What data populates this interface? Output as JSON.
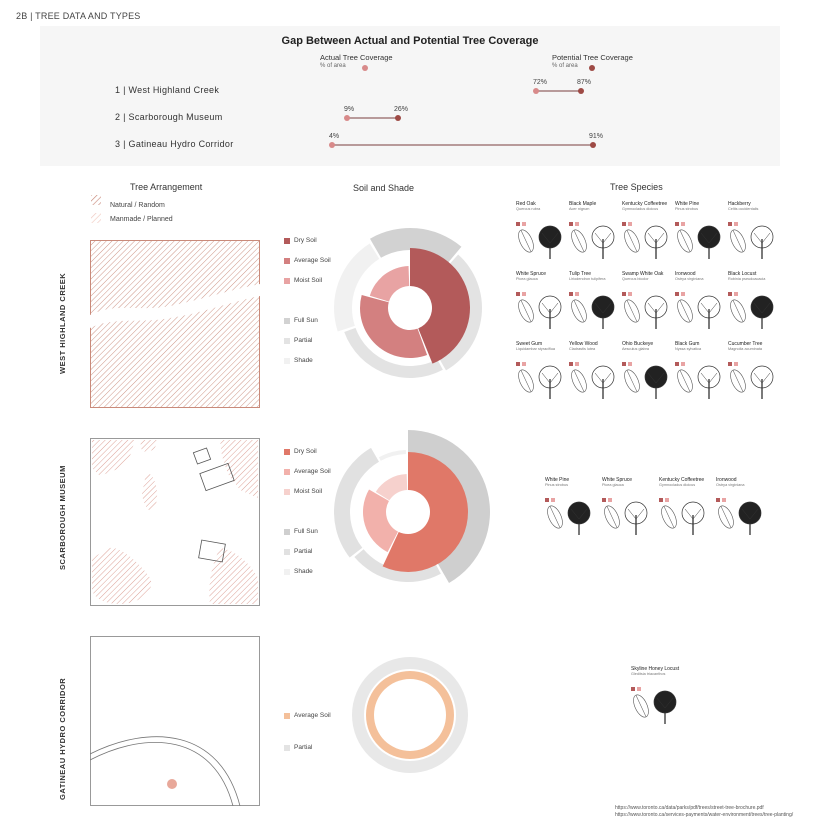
{
  "header": {
    "title": "2B | TREE DATA AND TYPES"
  },
  "gap_chart": {
    "title": "Gap Between Actual and Potential Tree Coverage",
    "legend": {
      "actual_label": "Actual Tree Coverage",
      "actual_sub": "% of area",
      "potential_label": "Potential Tree Coverage",
      "potential_sub": "% of area"
    },
    "colors": {
      "actual": "#d88a8a",
      "potential": "#9e4a45"
    },
    "rows": [
      {
        "label": "1 | West Highland Creek",
        "actual": 72,
        "potential": 87,
        "actual_text": "72%",
        "potential_text": "87%"
      },
      {
        "label": "2 | Scarborough Museum",
        "actual": 9,
        "potential": 26,
        "actual_text": "9%",
        "potential_text": "26%"
      },
      {
        "label": "3 | Gatineau Hydro Corridor",
        "actual": 4,
        "potential": 91,
        "actual_text": "4%",
        "potential_text": "91%"
      }
    ]
  },
  "columns": {
    "arrangement": "Tree Arrangement",
    "soil_shade": "Soil and Shade",
    "species": "Tree Species"
  },
  "arrangement_legend": {
    "natural": "Natural / Random",
    "manmade": "Manmade / Planned"
  },
  "sites": [
    {
      "name": "WEST HIGHLAND CREEK"
    },
    {
      "name": "SCARBOROUGH MUSEUM"
    },
    {
      "name": "GATINEAU HYDRO CORRIDOR"
    }
  ],
  "soil_legend_1": [
    "Dry Soil",
    "Average Soil",
    "Moist Soil",
    "Full Sun",
    "Partial",
    "Shade"
  ],
  "soil_legend_2": [
    "Dry Soil",
    "Average Soil",
    "Moist Soil",
    "Full Sun",
    "Partial",
    "Shade"
  ],
  "soil_legend_3": [
    "Average Soil",
    "Partial"
  ],
  "soil_colors_1": [
    "#b35a5a",
    "#d38080",
    "#e8a3a3",
    "#d2d2d2",
    "#e3e3e3",
    "#f1f1f1"
  ],
  "soil_colors_2": [
    "#e07868",
    "#f2b1ab",
    "#f6d1cd",
    "#cfcfcf",
    "#e1e1e1",
    "#f1f1f1"
  ],
  "soil_colors_3": [
    "#f4c09a",
    "#e3e3e3"
  ],
  "species_1": [
    {
      "name": "Red Oak",
      "latin": "Quercus rubra"
    },
    {
      "name": "Black Maple",
      "latin": "Acer nigrum"
    },
    {
      "name": "Kentucky Coffeetree",
      "latin": "Gymnocladus dioicus"
    },
    {
      "name": "White Pine",
      "latin": "Pinus strobus"
    },
    {
      "name": "Hackberry",
      "latin": "Celtis occidentalis"
    },
    {
      "name": "White Spruce",
      "latin": "Picea glauca"
    },
    {
      "name": "Tulip Tree",
      "latin": "Liriodendron tulipifera"
    },
    {
      "name": "Swamp White Oak",
      "latin": "Quercus bicolor"
    },
    {
      "name": "Ironwood",
      "latin": "Ostrya virginiana"
    },
    {
      "name": "Black Locust",
      "latin": "Robinia pseudoacacia"
    },
    {
      "name": "Sweet Gum",
      "latin": "Liquidambar styraciflua"
    },
    {
      "name": "Yellow Wood",
      "latin": "Cladrastis lutea"
    },
    {
      "name": "Ohio Buckeye",
      "latin": "Aesculus glabra"
    },
    {
      "name": "Black Gum",
      "latin": "Nyssa sylvatica"
    },
    {
      "name": "Cucumber Tree",
      "latin": "Magnolia acuminata"
    }
  ],
  "species_2": [
    {
      "name": "White Pine",
      "latin": "Pinus strobus"
    },
    {
      "name": "White Spruce",
      "latin": "Picea glauca"
    },
    {
      "name": "Kentucky Coffeetree",
      "latin": "Gymnocladus dioicus"
    },
    {
      "name": "Ironwood",
      "latin": "Ostrya virginiana"
    }
  ],
  "species_3": [
    {
      "name": "Skyline Honey Locust",
      "latin": "Gleditsia triacanthos"
    }
  ],
  "sources": [
    "https://www.toronto.ca/data/parks/pdf/trees/street-tree-brochure.pdf",
    "https://www.toronto.ca/services-payments/water-environment/trees/tree-planting/"
  ]
}
